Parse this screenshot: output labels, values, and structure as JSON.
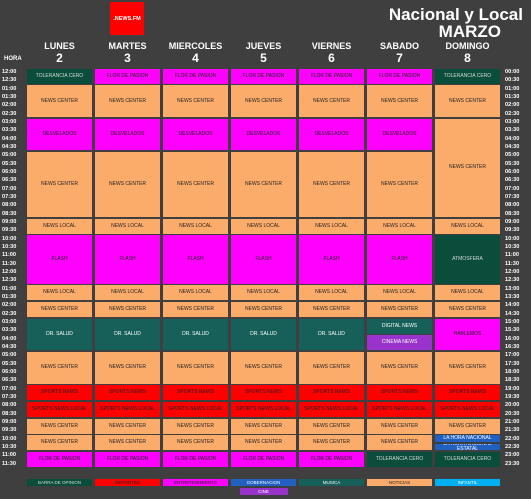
{
  "header": {
    "logo": ".NEWS.FM",
    "title": "Nacional y Local",
    "month": "MARZO",
    "hour_label": "HORA"
  },
  "times_left": [
    "12:00",
    "12:30",
    "01:00",
    "01:30",
    "02:00",
    "02:30",
    "03:00",
    "03:30",
    "04:00",
    "04:30",
    "05:00",
    "05:30",
    "06:00",
    "06:30",
    "07:00",
    "07:30",
    "08:00",
    "08:30",
    "09:00",
    "09:30",
    "10:00",
    "10:30",
    "11:00",
    "11:30",
    "12:00",
    "12:30",
    "01:00",
    "01:30",
    "02:00",
    "02:30",
    "03:00",
    "03:30",
    "04:00",
    "04:30",
    "05:00",
    "05:30",
    "06:00",
    "06:30",
    "07:00",
    "07:30",
    "08:00",
    "08:30",
    "09:00",
    "09:30",
    "10:00",
    "10:30",
    "11:00",
    "11:30"
  ],
  "times_right": [
    "00:00",
    "00:30",
    "01:00",
    "01:30",
    "02:00",
    "02:30",
    "03:00",
    "03:30",
    "04:00",
    "04:30",
    "05:00",
    "05:30",
    "06:00",
    "06:30",
    "07:00",
    "07:30",
    "08:00",
    "08:30",
    "09:00",
    "09:30",
    "10:00",
    "10:30",
    "11:00",
    "11:30",
    "12:00",
    "12:30",
    "13:00",
    "13:30",
    "14:00",
    "14:30",
    "15:00",
    "15:30",
    "16:00",
    "16:30",
    "17:00",
    "17:30",
    "18:00",
    "18:30",
    "19:00",
    "19:30",
    "20:00",
    "20:30",
    "21:00",
    "21:30",
    "22:00",
    "22:30",
    "23:00",
    "23:30"
  ],
  "legend": [
    [
      {
        "name": "BARRA DE OPINION",
        "color": "#0b4d3b",
        "text_color": "#d8d8d8"
      }
    ],
    [
      {
        "name": "DEPORTES",
        "color": "#ff0000",
        "text_color": "#222"
      }
    ],
    [
      {
        "name": "ENTRETENIMIENTO",
        "color": "#ff00ff",
        "text_color": "#222"
      }
    ],
    [
      {
        "name": "GOBERNACION",
        "color": "#2060c0",
        "text_color": "#fff"
      },
      {
        "name": "CINE",
        "color": "#9933cc",
        "text_color": "#fff"
      }
    ],
    [
      {
        "name": "MUSICA",
        "color": "#17605a",
        "text_color": "#fff"
      }
    ],
    [
      {
        "name": "NOTICIAS",
        "color": "#fbab6a",
        "text_color": "#222"
      }
    ],
    [
      {
        "name": "INFANTIL",
        "color": "#00b0f0",
        "text_color": "#fff"
      }
    ]
  ],
  "days": [
    {
      "name": "LUNES",
      "number": 2,
      "blocks": [
        {
          "label": "TOLERANCIA CERO",
          "from": "00:00",
          "to": "00:30",
          "category": "BARRA DE OPINION"
        },
        {
          "label": "NEWS CENTER",
          "from": "01:00",
          "to": "02:30",
          "category": "NOTICIAS"
        },
        {
          "label": "DESVELADOS",
          "from": "03:00",
          "to": "04:30",
          "category": "ENTRETENIMIENTO"
        },
        {
          "label": "NEWS CENTER",
          "from": "05:00",
          "to": "08:30",
          "category": "NOTICIAS"
        },
        {
          "label": "NEWS LOCAL",
          "from": "09:00",
          "to": "09:30",
          "category": "NOTICIAS"
        },
        {
          "label": "FLASH",
          "from": "10:00",
          "to": "12:30",
          "category": "ENTRETENIMIENTO"
        },
        {
          "label": "NEWS LOCAL",
          "from": "13:00",
          "to": "13:30",
          "category": "NOTICIAS"
        },
        {
          "label": "NEWS CENTER",
          "from": "14:00",
          "to": "14:30",
          "category": "NOTICIAS"
        },
        {
          "label": "DR. SALUD",
          "from": "15:00",
          "to": "16:30",
          "category": "MUSICA"
        },
        {
          "label": "NEWS CENTER",
          "from": "17:00",
          "to": "18:30",
          "category": "NOTICIAS"
        },
        {
          "label": "SPORTS NEWS",
          "from": "19:00",
          "to": "19:30",
          "category": "DEPORTES"
        },
        {
          "label": "SPORTS NEWS LOCAL",
          "from": "20:00",
          "to": "20:30",
          "category": "DEPORTES"
        },
        {
          "label": "NEWS CENTER",
          "from": "21:00",
          "to": "21:30",
          "category": "NOTICIAS"
        },
        {
          "label": "NEWS CENTER",
          "from": "22:00",
          "to": "22:30",
          "category": "NOTICIAS"
        },
        {
          "label": "FLOR DE PASION",
          "from": "23:00",
          "to": "23:30",
          "category": "ENTRETENIMIENTO"
        }
      ]
    },
    {
      "name": "MARTES",
      "number": 3,
      "blocks": [
        {
          "label": "FLOR DE PASION",
          "from": "00:00",
          "to": "00:30",
          "category": "ENTRETENIMIENTO"
        },
        {
          "label": "NEWS CENTER",
          "from": "01:00",
          "to": "02:30",
          "category": "NOTICIAS"
        },
        {
          "label": "DESVELADOS",
          "from": "03:00",
          "to": "04:30",
          "category": "ENTRETENIMIENTO"
        },
        {
          "label": "NEWS CENTER",
          "from": "05:00",
          "to": "08:30",
          "category": "NOTICIAS"
        },
        {
          "label": "NEWS LOCAL",
          "from": "09:00",
          "to": "09:30",
          "category": "NOTICIAS"
        },
        {
          "label": "FLASH",
          "from": "10:00",
          "to": "12:30",
          "category": "ENTRETENIMIENTO"
        },
        {
          "label": "NEWS LOCAL",
          "from": "13:00",
          "to": "13:30",
          "category": "NOTICIAS"
        },
        {
          "label": "NEWS CENTER",
          "from": "14:00",
          "to": "14:30",
          "category": "NOTICIAS"
        },
        {
          "label": "DR. SALUD",
          "from": "15:00",
          "to": "16:30",
          "category": "MUSICA"
        },
        {
          "label": "NEWS CENTER",
          "from": "17:00",
          "to": "18:30",
          "category": "NOTICIAS"
        },
        {
          "label": "SPORTS NEWS",
          "from": "19:00",
          "to": "19:30",
          "category": "DEPORTES"
        },
        {
          "label": "SPORTS NEWS LOCAL",
          "from": "20:00",
          "to": "20:30",
          "category": "DEPORTES"
        },
        {
          "label": "NEWS CENTER",
          "from": "21:00",
          "to": "21:30",
          "category": "NOTICIAS"
        },
        {
          "label": "NEWS CENTER",
          "from": "22:00",
          "to": "22:30",
          "category": "NOTICIAS"
        },
        {
          "label": "FLOR DE PASION",
          "from": "23:00",
          "to": "23:30",
          "category": "ENTRETENIMIENTO"
        }
      ]
    },
    {
      "name": "MIERCOLES",
      "number": 4,
      "blocks": [
        {
          "label": "FLOR DE PASION",
          "from": "00:00",
          "to": "00:30",
          "category": "ENTRETENIMIENTO"
        },
        {
          "label": "NEWS CENTER",
          "from": "01:00",
          "to": "02:30",
          "category": "NOTICIAS"
        },
        {
          "label": "DESVELADOS",
          "from": "03:00",
          "to": "04:30",
          "category": "ENTRETENIMIENTO"
        },
        {
          "label": "NEWS CENTER",
          "from": "05:00",
          "to": "08:30",
          "category": "NOTICIAS"
        },
        {
          "label": "NEWS LOCAL",
          "from": "09:00",
          "to": "09:30",
          "category": "NOTICIAS"
        },
        {
          "label": "FLASH",
          "from": "10:00",
          "to": "12:30",
          "category": "ENTRETENIMIENTO"
        },
        {
          "label": "NEWS LOCAL",
          "from": "13:00",
          "to": "13:30",
          "category": "NOTICIAS"
        },
        {
          "label": "NEWS CENTER",
          "from": "14:00",
          "to": "14:30",
          "category": "NOTICIAS"
        },
        {
          "label": "DR. SALUD",
          "from": "15:00",
          "to": "16:30",
          "category": "MUSICA"
        },
        {
          "label": "NEWS CENTER",
          "from": "17:00",
          "to": "18:30",
          "category": "NOTICIAS"
        },
        {
          "label": "SPORTS NEWS",
          "from": "19:00",
          "to": "19:30",
          "category": "DEPORTES"
        },
        {
          "label": "SPORTS NEWS LOCAL",
          "from": "20:00",
          "to": "20:30",
          "category": "DEPORTES"
        },
        {
          "label": "NEWS CENTER",
          "from": "21:00",
          "to": "21:30",
          "category": "NOTICIAS"
        },
        {
          "label": "NEWS CENTER",
          "from": "22:00",
          "to": "22:30",
          "category": "NOTICIAS"
        },
        {
          "label": "FLOR DE PASION",
          "from": "23:00",
          "to": "23:30",
          "category": "ENTRETENIMIENTO"
        }
      ]
    },
    {
      "name": "JUEVES",
      "number": 5,
      "blocks": [
        {
          "label": "FLOR DE PASION",
          "from": "00:00",
          "to": "00:30",
          "category": "ENTRETENIMIENTO"
        },
        {
          "label": "NEWS CENTER",
          "from": "01:00",
          "to": "02:30",
          "category": "NOTICIAS"
        },
        {
          "label": "DESVELADOS",
          "from": "03:00",
          "to": "04:30",
          "category": "ENTRETENIMIENTO"
        },
        {
          "label": "NEWS CENTER",
          "from": "05:00",
          "to": "08:30",
          "category": "NOTICIAS"
        },
        {
          "label": "NEWS LOCAL",
          "from": "09:00",
          "to": "09:30",
          "category": "NOTICIAS"
        },
        {
          "label": "FLASH",
          "from": "10:00",
          "to": "12:30",
          "category": "ENTRETENIMIENTO"
        },
        {
          "label": "NEWS LOCAL",
          "from": "13:00",
          "to": "13:30",
          "category": "NOTICIAS"
        },
        {
          "label": "NEWS CENTER",
          "from": "14:00",
          "to": "14:30",
          "category": "NOTICIAS"
        },
        {
          "label": "DR. SALUD",
          "from": "15:00",
          "to": "16:30",
          "category": "MUSICA"
        },
        {
          "label": "NEWS CENTER",
          "from": "17:00",
          "to": "18:30",
          "category": "NOTICIAS"
        },
        {
          "label": "SPORTS NEWS",
          "from": "19:00",
          "to": "19:30",
          "category": "DEPORTES"
        },
        {
          "label": "SPORTS NEWS LOCAL",
          "from": "20:00",
          "to": "20:30",
          "category": "DEPORTES"
        },
        {
          "label": "NEWS CENTER",
          "from": "21:00",
          "to": "21:30",
          "category": "NOTICIAS"
        },
        {
          "label": "NEWS CENTER",
          "from": "22:00",
          "to": "22:30",
          "category": "NOTICIAS"
        },
        {
          "label": "FLOR DE PASION",
          "from": "23:00",
          "to": "23:30",
          "category": "ENTRETENIMIENTO"
        }
      ]
    },
    {
      "name": "VIERNES",
      "number": 6,
      "blocks": [
        {
          "label": "FLOR DE PASION",
          "from": "00:00",
          "to": "00:30",
          "category": "ENTRETENIMIENTO"
        },
        {
          "label": "NEWS CENTER",
          "from": "01:00",
          "to": "02:30",
          "category": "NOTICIAS"
        },
        {
          "label": "DESVELADOS",
          "from": "03:00",
          "to": "04:30",
          "category": "ENTRETENIMIENTO"
        },
        {
          "label": "NEWS CENTER",
          "from": "05:00",
          "to": "08:30",
          "category": "NOTICIAS"
        },
        {
          "label": "NEWS LOCAL",
          "from": "09:00",
          "to": "09:30",
          "category": "NOTICIAS"
        },
        {
          "label": "FLASH",
          "from": "10:00",
          "to": "12:30",
          "category": "ENTRETENIMIENTO"
        },
        {
          "label": "NEWS LOCAL",
          "from": "13:00",
          "to": "13:30",
          "category": "NOTICIAS"
        },
        {
          "label": "NEWS CENTER",
          "from": "14:00",
          "to": "14:30",
          "category": "NOTICIAS"
        },
        {
          "label": "DR. SALUD",
          "from": "15:00",
          "to": "16:30",
          "category": "MUSICA"
        },
        {
          "label": "NEWS CENTER",
          "from": "17:00",
          "to": "18:30",
          "category": "NOTICIAS"
        },
        {
          "label": "SPORTS NEWS",
          "from": "19:00",
          "to": "19:30",
          "category": "DEPORTES"
        },
        {
          "label": "SPORTS NEWS LOCAL",
          "from": "20:00",
          "to": "20:30",
          "category": "DEPORTES"
        },
        {
          "label": "NEWS CENTER",
          "from": "21:00",
          "to": "21:30",
          "category": "NOTICIAS"
        },
        {
          "label": "NEWS CENTER",
          "from": "22:00",
          "to": "22:30",
          "category": "NOTICIAS"
        },
        {
          "label": "FLOR DE PASION",
          "from": "23:00",
          "to": "23:30",
          "category": "ENTRETENIMIENTO"
        }
      ]
    },
    {
      "name": "SABADO",
      "number": 7,
      "blocks": [
        {
          "label": "FLOR DE PASION",
          "from": "00:00",
          "to": "00:30",
          "category": "ENTRETENIMIENTO"
        },
        {
          "label": "NEWS CENTER",
          "from": "01:00",
          "to": "02:30",
          "category": "NOTICIAS"
        },
        {
          "label": "DESVELADOS",
          "from": "03:00",
          "to": "04:30",
          "category": "ENTRETENIMIENTO"
        },
        {
          "label": "NEWS CENTER",
          "from": "05:00",
          "to": "08:30",
          "category": "NOTICIAS"
        },
        {
          "label": "NEWS LOCAL",
          "from": "09:00",
          "to": "09:30",
          "category": "NOTICIAS"
        },
        {
          "label": "FLASH",
          "from": "10:00",
          "to": "12:30",
          "category": "ENTRETENIMIENTO"
        },
        {
          "label": "NEWS LOCAL",
          "from": "13:00",
          "to": "13:30",
          "category": "NOTICIAS"
        },
        {
          "label": "NEWS CENTER",
          "from": "14:00",
          "to": "14:30",
          "category": "NOTICIAS"
        },
        {
          "label": "DIGITAL NEWS",
          "from": "15:00",
          "to": "15:30",
          "category": "MUSICA"
        },
        {
          "label": "CINEMA NEWS",
          "from": "16:00",
          "to": "16:30",
          "category": "CINE"
        },
        {
          "label": "NEWS CENTER",
          "from": "17:00",
          "to": "18:30",
          "category": "NOTICIAS"
        },
        {
          "label": "SPORTS NEWS",
          "from": "19:00",
          "to": "19:30",
          "category": "DEPORTES"
        },
        {
          "label": "SPORTS NEWS LOCAL",
          "from": "20:00",
          "to": "20:30",
          "category": "DEPORTES"
        },
        {
          "label": "NEWS CENTER",
          "from": "21:00",
          "to": "21:30",
          "category": "NOTICIAS"
        },
        {
          "label": "NEWS CENTER",
          "from": "22:00",
          "to": "22:30",
          "category": "NOTICIAS"
        },
        {
          "label": "TOLERANCIA CERO",
          "from": "23:00",
          "to": "23:30",
          "category": "BARRA DE OPINION"
        }
      ]
    },
    {
      "name": "DOMINGO",
      "number": 8,
      "blocks": [
        {
          "label": "TOLERANCIA CERO",
          "from": "00:00",
          "to": "00:30",
          "category": "BARRA DE OPINION"
        },
        {
          "label": "NEWS CENTER",
          "from": "01:00",
          "to": "02:30",
          "category": "NOTICIAS"
        },
        {
          "label": "NEWS CENTER",
          "from": "03:00",
          "to": "08:30",
          "category": "NOTICIAS"
        },
        {
          "label": "NEWS LOCAL",
          "from": "09:00",
          "to": "09:30",
          "category": "NOTICIAS"
        },
        {
          "label": "ATMOSFERA",
          "from": "10:00",
          "to": "12:30",
          "category": "BARRA DE OPINION"
        },
        {
          "label": "NEWS LOCAL",
          "from": "13:00",
          "to": "13:30",
          "category": "NOTICIAS"
        },
        {
          "label": "NEWS CENTER",
          "from": "14:00",
          "to": "14:30",
          "category": "NOTICIAS"
        },
        {
          "label": "HABLEMOS",
          "from": "15:00",
          "to": "16:30",
          "category": "ENTRETENIMIENTO"
        },
        {
          "label": "NEWS CENTER",
          "from": "17:00",
          "to": "18:30",
          "category": "NOTICIAS"
        },
        {
          "label": "SPORTS NEWS",
          "from": "19:00",
          "to": "19:30",
          "category": "DEPORTES"
        },
        {
          "label": "SPORTS NEWS LOCAL",
          "from": "20:00",
          "to": "20:30",
          "category": "DEPORTES"
        },
        {
          "label": "NEWS CENTER",
          "from": "21:00",
          "to": "21:30",
          "category": "NOTICIAS"
        },
        {
          "label": "LA HORA NACIONAL",
          "from": "22:00",
          "to": "22:00",
          "category": "GOBERNACION"
        },
        {
          "label": "LA HORA NACIONAL ESTATAL",
          "from": "22:30",
          "to": "22:30",
          "category": "GOBERNACION"
        },
        {
          "label": "TOLERANCIA CERO",
          "from": "23:00",
          "to": "23:30",
          "category": "BARRA DE OPINION"
        }
      ]
    }
  ]
}
